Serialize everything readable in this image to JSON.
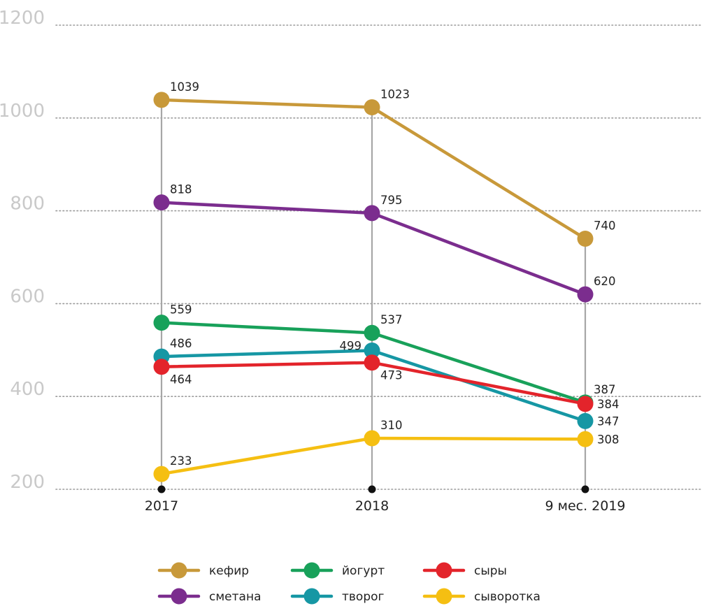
{
  "chart_data": {
    "type": "line",
    "title": "",
    "xlabel": "",
    "ylabel": "",
    "categories": [
      "2017",
      "2018",
      "9 мес. 2019"
    ],
    "ylim": [
      200,
      1200
    ],
    "yticks": [
      200,
      400,
      600,
      800,
      1000,
      1200
    ],
    "grid": true,
    "legend_position": "bottom",
    "series": [
      {
        "name": "кефир",
        "color": "#c8993a",
        "values": [
          1039,
          1023,
          740
        ]
      },
      {
        "name": "сметана",
        "color": "#7b2d8e",
        "values": [
          818,
          795,
          620
        ]
      },
      {
        "name": "йогурт",
        "color": "#18a15a",
        "values": [
          559,
          537,
          387
        ]
      },
      {
        "name": "творог",
        "color": "#1697a4",
        "values": [
          486,
          499,
          347
        ]
      },
      {
        "name": "сыры",
        "color": "#e3242b",
        "values": [
          464,
          473,
          384
        ]
      },
      {
        "name": "сыворотка",
        "color": "#f5bf12",
        "values": [
          233,
          310,
          308
        ]
      }
    ]
  }
}
